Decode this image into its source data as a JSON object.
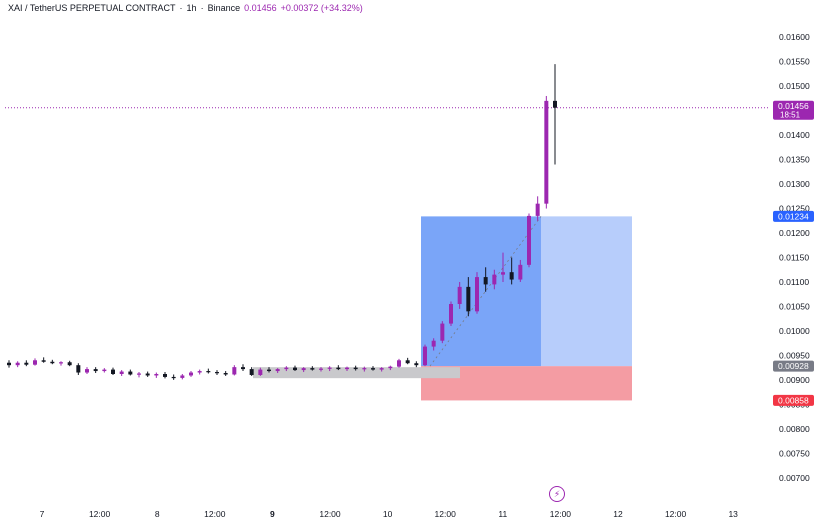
{
  "header": {
    "symbol": "XAI / TetherUS PERPETUAL CONTRACT",
    "sep1": "·",
    "interval": "1h",
    "sep2": "·",
    "exchange": "Binance",
    "last_price": "0.01456",
    "change": "+0.00372 (+34.32%)"
  },
  "icons": {
    "bolt": "lightning-icon"
  },
  "colors": {
    "candle_up": "#9c27b0",
    "candle_down": "#131722",
    "profit_zone": "#6b9bf7",
    "loss_zone": "#f28b93",
    "price_line": "#9c27b0"
  },
  "price_labels": {
    "last": {
      "value": 0.01456,
      "text": "0.01456",
      "sub": "18:51",
      "color": "#9c27b0"
    },
    "target": {
      "value": 0.01234,
      "text": "0.01234",
      "color": "#2962ff"
    },
    "entry": {
      "value": 0.00928,
      "text": "0.00928",
      "color": "#787b86"
    },
    "stop": {
      "value": 0.00858,
      "text": "0.00858",
      "color": "#f23645"
    }
  },
  "chart_data": {
    "type": "candlestick",
    "ylim": [
      0.00675,
      0.01625
    ],
    "y_ticks": [
      "0.01600",
      "0.01550",
      "0.01500",
      "0.01450",
      "0.01400",
      "0.01350",
      "0.01300",
      "0.01250",
      "0.01200",
      "0.01150",
      "0.01100",
      "0.01050",
      "0.01000",
      "0.00950",
      "0.00900",
      "0.00850",
      "0.00800",
      "0.00750",
      "0.00700"
    ],
    "x_ticks": [
      "7",
      "12:00",
      "8",
      "12:00",
      "9",
      "12:00",
      "10",
      "12:00",
      "11",
      "12:00",
      "12",
      "12:00",
      "13"
    ],
    "bold_x_ticks": [
      "9"
    ],
    "position": {
      "entry": 0.00928,
      "target": 0.01234,
      "stop": 0.00858
    },
    "series": [
      {
        "values": [
          [
            0.00935,
            0.0094,
            0.00925,
            0.0093
          ],
          [
            0.0093,
            0.00938,
            0.00926,
            0.00935
          ],
          [
            0.00935,
            0.0094,
            0.00928,
            0.00931
          ],
          [
            0.00931,
            0.00944,
            0.00929,
            0.0094
          ],
          [
            0.0094,
            0.00946,
            0.00935,
            0.00937
          ],
          [
            0.00937,
            0.00941,
            0.00932,
            0.00934
          ],
          [
            0.00934,
            0.00938,
            0.00929,
            0.00936
          ],
          [
            0.00936,
            0.00939,
            0.00928,
            0.0093
          ],
          [
            0.0093,
            0.00934,
            0.0091,
            0.00915
          ],
          [
            0.00915,
            0.00926,
            0.00912,
            0.00922
          ],
          [
            0.00922,
            0.00926,
            0.00914,
            0.00918
          ],
          [
            0.00918,
            0.00924,
            0.00915,
            0.00921
          ],
          [
            0.00921,
            0.00925,
            0.0091,
            0.00912
          ],
          [
            0.00912,
            0.0092,
            0.00908,
            0.00917
          ],
          [
            0.00917,
            0.00921,
            0.00909,
            0.00911
          ],
          [
            0.00911,
            0.00916,
            0.00905,
            0.00913
          ],
          [
            0.00913,
            0.00917,
            0.00906,
            0.00909
          ],
          [
            0.00909,
            0.00915,
            0.00904,
            0.00912
          ],
          [
            0.00912,
            0.00916,
            0.00903,
            0.00906
          ],
          [
            0.00906,
            0.00911,
            0.009,
            0.00904
          ],
          [
            0.00904,
            0.00912,
            0.00901,
            0.00909
          ],
          [
            0.00909,
            0.00918,
            0.00906,
            0.00915
          ],
          [
            0.00915,
            0.00921,
            0.00911,
            0.00918
          ],
          [
            0.00918,
            0.00923,
            0.00913,
            0.00916
          ],
          [
            0.00916,
            0.0092,
            0.0091,
            0.00914
          ],
          [
            0.00914,
            0.00918,
            0.00908,
            0.00911
          ],
          [
            0.00911,
            0.0093,
            0.00909,
            0.00926
          ],
          [
            0.00926,
            0.00932,
            0.00918,
            0.00922
          ],
          [
            0.00922,
            0.00926,
            0.00908,
            0.0091
          ],
          [
            0.0091,
            0.00925,
            0.00908,
            0.00921
          ],
          [
            0.00921,
            0.00926,
            0.00915,
            0.00918
          ],
          [
            0.00918,
            0.00924,
            0.00914,
            0.00922
          ],
          [
            0.00922,
            0.00928,
            0.00918,
            0.00925
          ],
          [
            0.00925,
            0.00929,
            0.00918,
            0.0092
          ],
          [
            0.0092,
            0.00926,
            0.00916,
            0.00924
          ],
          [
            0.00924,
            0.00928,
            0.00919,
            0.00921
          ],
          [
            0.00921,
            0.00926,
            0.00917,
            0.00923
          ],
          [
            0.00923,
            0.00928,
            0.00918,
            0.00925
          ],
          [
            0.00925,
            0.0093,
            0.0092,
            0.00922
          ],
          [
            0.00922,
            0.00927,
            0.00918,
            0.00925
          ],
          [
            0.00925,
            0.00929,
            0.00919,
            0.00922
          ],
          [
            0.00922,
            0.00927,
            0.00917,
            0.00924
          ],
          [
            0.00924,
            0.00928,
            0.00919,
            0.00921
          ],
          [
            0.00921,
            0.00926,
            0.00917,
            0.00924
          ],
          [
            0.00924,
            0.00929,
            0.0092,
            0.00927
          ],
          [
            0.00927,
            0.00943,
            0.00925,
            0.0094
          ],
          [
            0.0094,
            0.00945,
            0.00932,
            0.00934
          ],
          [
            0.00934,
            0.00938,
            0.00926,
            0.0093
          ],
          [
            0.0093,
            0.00972,
            0.00928,
            0.00968
          ],
          [
            0.00968,
            0.00985,
            0.0096,
            0.0098
          ],
          [
            0.0098,
            0.0102,
            0.00975,
            0.01015
          ],
          [
            0.01015,
            0.0106,
            0.0101,
            0.01055
          ],
          [
            0.01055,
            0.011,
            0.01045,
            0.0109
          ],
          [
            0.0109,
            0.0111,
            0.0103,
            0.0104
          ],
          [
            0.0104,
            0.0112,
            0.01035,
            0.0111
          ],
          [
            0.0111,
            0.0113,
            0.0108,
            0.01095
          ],
          [
            0.01095,
            0.01125,
            0.01085,
            0.01115
          ],
          [
            0.01115,
            0.0116,
            0.011,
            0.0112
          ],
          [
            0.0112,
            0.0115,
            0.01095,
            0.01105
          ],
          [
            0.01105,
            0.01145,
            0.011,
            0.01135
          ],
          [
            0.01135,
            0.0124,
            0.0113,
            0.01235
          ],
          [
            0.01235,
            0.01275,
            0.01225,
            0.0126
          ],
          [
            0.0126,
            0.0148,
            0.0125,
            0.0147
          ],
          [
            0.0147,
            0.01545,
            0.0134,
            0.01456
          ]
        ]
      }
    ]
  }
}
